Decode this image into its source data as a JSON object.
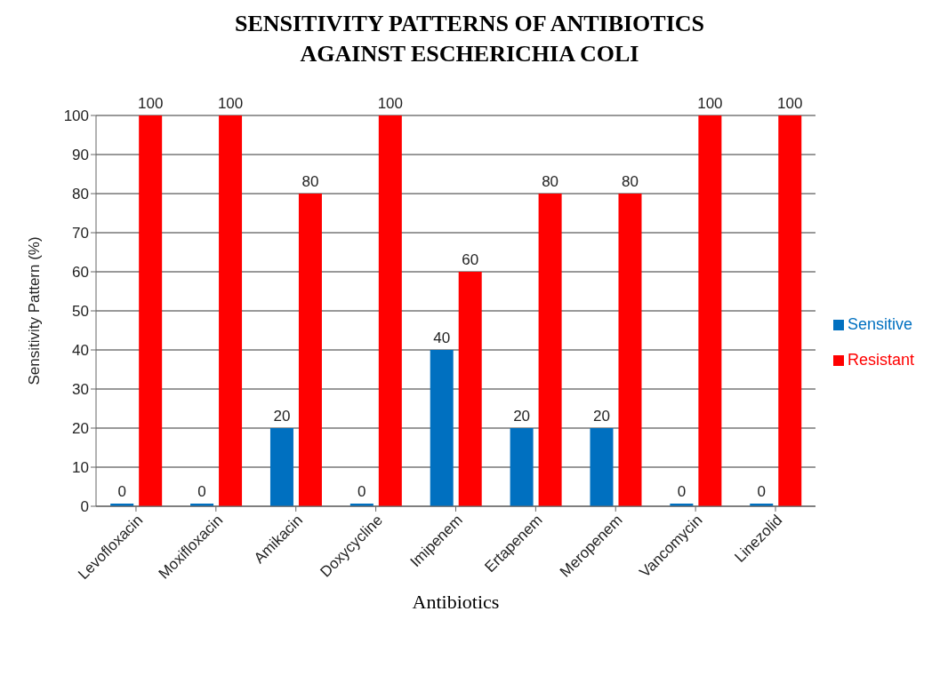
{
  "chart_data": {
    "type": "bar",
    "title": "SENSITIVITY PATTERNS OF ANTIBIOTICS AGAINST ESCHERICHIA COLI",
    "xlabel": "Antibiotics",
    "ylabel": "Sensitivity Pattern (%)",
    "categories": [
      "Levofloxacin",
      "Moxifloxacin",
      "Amikacin",
      "Doxycycline",
      "Imipenem",
      "Ertapenem",
      "Meropenem",
      "Vancomycin",
      "Linezolid"
    ],
    "series": [
      {
        "name": "Sensitive",
        "color": "#0070c0",
        "values": [
          0,
          0,
          20,
          0,
          40,
          20,
          20,
          0,
          0
        ]
      },
      {
        "name": "Resistant",
        "color": "#ff0000",
        "values": [
          100,
          100,
          80,
          100,
          60,
          80,
          80,
          100,
          100
        ]
      }
    ],
    "ylim": [
      0,
      100
    ],
    "yticks": [
      0,
      10,
      20,
      30,
      40,
      50,
      60,
      70,
      80,
      90,
      100
    ],
    "grid": "y",
    "legend": "right",
    "data_labels": true
  }
}
